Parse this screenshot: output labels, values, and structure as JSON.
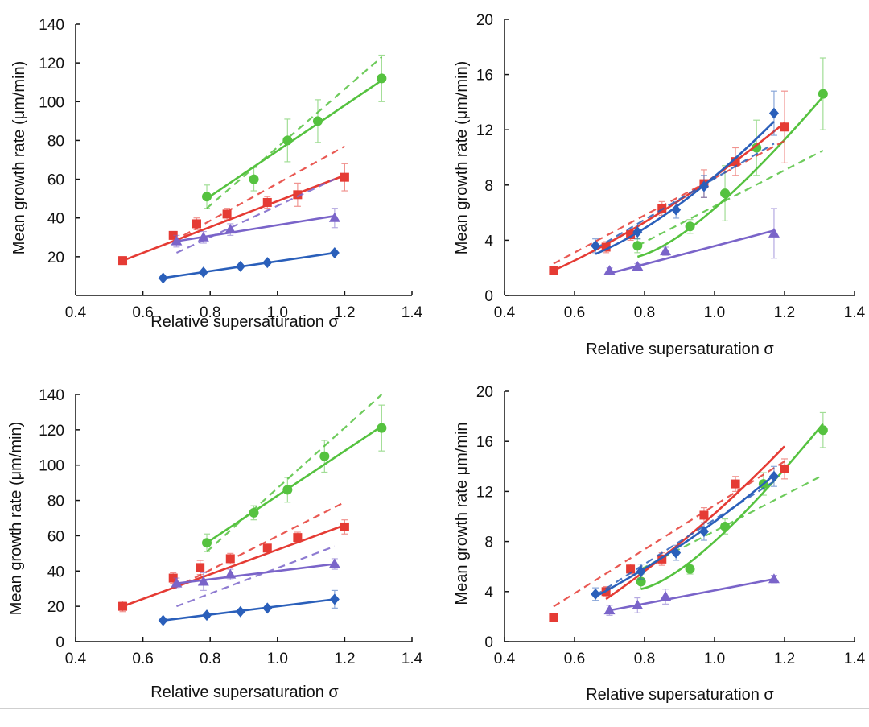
{
  "figure": {
    "colors": {
      "green": "#55c23f",
      "red": "#e53b34",
      "purple": "#7a64c9",
      "blue": "#2a5fba"
    }
  },
  "chart_data": [
    {
      "type": "scatter",
      "title": "",
      "xlabel": "Relative supersaturation σ",
      "ylabel": "Mean growth rate (μm/min)",
      "xlim": [
        0.4,
        1.4
      ],
      "ylim": [
        0,
        140
      ],
      "xticks": [
        "0.4",
        "0.6",
        "0.8",
        "1.0",
        "1.2",
        "1.4"
      ],
      "yticks": [
        "20",
        "40",
        "60",
        "80",
        "100",
        "120",
        "140"
      ],
      "series": [
        {
          "name": "green",
          "color": "#55c23f",
          "marker": "circle",
          "x": [
            0.79,
            0.93,
            1.03,
            1.12,
            1.31
          ],
          "y": [
            51,
            60,
            80,
            90,
            112
          ],
          "err": [
            6,
            6,
            11,
            11,
            12
          ],
          "fit": [
            [
              0.79,
              50
            ],
            [
              1.31,
              111
            ]
          ],
          "dashed": [
            [
              0.79,
              45
            ],
            [
              1.31,
              123
            ]
          ]
        },
        {
          "name": "red",
          "color": "#e53b34",
          "marker": "square",
          "x": [
            0.54,
            0.69,
            0.76,
            0.85,
            0.97,
            1.06,
            1.2
          ],
          "y": [
            18,
            31,
            37,
            42,
            48,
            52,
            61
          ],
          "err": [
            2,
            2,
            3,
            3,
            3,
            6,
            7
          ],
          "fit": [
            [
              0.54,
              18
            ],
            [
              1.2,
              62
            ]
          ],
          "dashed": [
            [
              0.69,
              28
            ],
            [
              1.2,
              77
            ]
          ]
        },
        {
          "name": "purple",
          "color": "#7a64c9",
          "marker": "triangle",
          "x": [
            0.7,
            0.78,
            0.86,
            1.17
          ],
          "y": [
            28,
            30,
            34,
            40
          ],
          "err": [
            3,
            3,
            3,
            5
          ],
          "fit": [
            [
              0.7,
              28
            ],
            [
              1.17,
              41
            ]
          ],
          "dashed": [
            [
              0.7,
              22
            ],
            [
              1.17,
              60
            ]
          ]
        },
        {
          "name": "blue",
          "color": "#2a5fba",
          "marker": "diamond",
          "x": [
            0.66,
            0.78,
            0.89,
            0.97,
            1.17
          ],
          "y": [
            9,
            12,
            15,
            17,
            22
          ],
          "err": [
            0,
            0,
            0,
            0,
            0
          ],
          "fit": [
            [
              0.66,
              9
            ],
            [
              1.17,
              22
            ]
          ],
          "dashed": []
        }
      ]
    },
    {
      "type": "scatter",
      "title": "",
      "xlabel": "Relative supersaturation σ",
      "ylabel": "Mean growth rate (μm/min)",
      "xlim": [
        0.4,
        1.4
      ],
      "ylim": [
        0,
        20
      ],
      "xticks": [
        "0.4",
        "0.6",
        "0.8",
        "1.0",
        "1.2",
        "1.4"
      ],
      "yticks": [
        "0",
        "4",
        "8",
        "12",
        "16",
        "20"
      ],
      "series": [
        {
          "name": "green",
          "color": "#55c23f",
          "marker": "circle",
          "x": [
            0.78,
            0.93,
            1.03,
            1.12,
            1.31
          ],
          "y": [
            3.6,
            5.0,
            7.4,
            10.7,
            14.6
          ],
          "err": [
            0.5,
            0.5,
            2,
            2,
            2.6
          ],
          "fit": [
            [
              0.78,
              2.8
            ],
            [
              1.0,
              6.3
            ],
            [
              1.31,
              14.4
            ]
          ],
          "dashed": [
            [
              0.78,
              3.6
            ],
            [
              1.31,
              10.5
            ]
          ]
        },
        {
          "name": "red",
          "color": "#e53b34",
          "marker": "square",
          "x": [
            0.54,
            0.69,
            0.76,
            0.85,
            0.97,
            1.06,
            1.2
          ],
          "y": [
            1.8,
            3.5,
            4.4,
            6.3,
            8.1,
            9.7,
            12.2
          ],
          "err": [
            0.3,
            0.4,
            0.4,
            0.5,
            1,
            1,
            2.6
          ],
          "fit": [
            [
              0.54,
              1.8
            ],
            [
              0.87,
              6.4
            ],
            [
              1.2,
              12.5
            ]
          ],
          "dashed": [
            [
              0.54,
              2.3
            ],
            [
              1.2,
              11.2
            ]
          ]
        },
        {
          "name": "purple",
          "color": "#7a64c9",
          "marker": "triangle",
          "x": [
            0.7,
            0.78,
            0.86,
            1.17
          ],
          "y": [
            1.8,
            2.1,
            3.2,
            4.5
          ],
          "err": [
            0.2,
            0.2,
            0.3,
            1.8
          ],
          "fit": [
            [
              0.7,
              1.6
            ],
            [
              1.17,
              4.7
            ]
          ],
          "dashed": []
        },
        {
          "name": "blue",
          "color": "#2a5fba",
          "marker": "diamond",
          "x": [
            0.66,
            0.78,
            0.89,
            0.97,
            1.17
          ],
          "y": [
            3.6,
            4.6,
            6.2,
            7.9,
            13.2
          ],
          "err": [
            0.5,
            0.5,
            0.6,
            0.8,
            1.6
          ],
          "fit": [
            [
              0.66,
              3.0
            ],
            [
              0.9,
              6.6
            ],
            [
              1.17,
              12.6
            ]
          ],
          "dashed": [
            [
              0.66,
              3.4
            ],
            [
              1.17,
              11.0
            ]
          ]
        }
      ]
    },
    {
      "type": "scatter",
      "title": "",
      "xlabel": "Relative supersaturation σ",
      "ylabel": "Mean growth rate (μm/min)",
      "xlim": [
        0.4,
        1.4
      ],
      "ylim": [
        0,
        140
      ],
      "xticks": [
        "0.4",
        "0.6",
        "0.8",
        "1.0",
        "1.2",
        "1.4"
      ],
      "yticks": [
        "0",
        "20",
        "40",
        "60",
        "80",
        "100",
        "120",
        "140"
      ],
      "series": [
        {
          "name": "green",
          "color": "#55c23f",
          "marker": "circle",
          "x": [
            0.79,
            0.93,
            1.03,
            1.14,
            1.31
          ],
          "y": [
            56,
            73,
            86,
            105,
            121
          ],
          "err": [
            5,
            4,
            7,
            9,
            13
          ],
          "fit": [
            [
              0.79,
              56
            ],
            [
              1.31,
              122
            ]
          ],
          "dashed": [
            [
              0.79,
              51
            ],
            [
              1.31,
              140
            ]
          ]
        },
        {
          "name": "red",
          "color": "#e53b34",
          "marker": "square",
          "x": [
            0.54,
            0.69,
            0.77,
            0.86,
            0.97,
            1.06,
            1.2
          ],
          "y": [
            20,
            36,
            42,
            47,
            53,
            59,
            65
          ],
          "err": [
            3,
            3,
            4,
            3,
            2,
            3,
            4
          ],
          "fit": [
            [
              0.54,
              20
            ],
            [
              1.2,
              66
            ]
          ],
          "dashed": [
            [
              0.69,
              30
            ],
            [
              1.2,
              79
            ]
          ]
        },
        {
          "name": "purple",
          "color": "#7a64c9",
          "marker": "triangle",
          "x": [
            0.7,
            0.78,
            0.86,
            1.17
          ],
          "y": [
            33,
            34,
            38,
            44
          ],
          "err": [
            3,
            5,
            3,
            3
          ],
          "fit": [
            [
              0.7,
              33
            ],
            [
              1.17,
              44
            ]
          ],
          "dashed": [
            [
              0.7,
              20
            ],
            [
              1.17,
              54
            ]
          ]
        },
        {
          "name": "blue",
          "color": "#2a5fba",
          "marker": "diamond",
          "x": [
            0.66,
            0.79,
            0.89,
            0.97,
            1.17
          ],
          "y": [
            12,
            15,
            17,
            19,
            24
          ],
          "err": [
            0,
            1,
            1,
            1,
            5
          ],
          "fit": [
            [
              0.66,
              12
            ],
            [
              1.17,
              24
            ]
          ],
          "dashed": []
        }
      ]
    },
    {
      "type": "scatter",
      "title": "",
      "xlabel": "Relative supersaturation σ",
      "ylabel": "Mean growth rate μm/min",
      "xlim": [
        0.4,
        1.4
      ],
      "ylim": [
        0,
        20
      ],
      "xticks": [
        "0.4",
        "0.6",
        "0.8",
        "1.0",
        "1.2",
        "1.4"
      ],
      "yticks": [
        "0",
        "4",
        "8",
        "12",
        "16",
        "20"
      ],
      "series": [
        {
          "name": "green",
          "color": "#55c23f",
          "marker": "circle",
          "x": [
            0.79,
            0.93,
            1.03,
            1.14,
            1.31
          ],
          "y": [
            4.8,
            5.8,
            9.2,
            12.6,
            16.9
          ],
          "err": [
            0.6,
            0.4,
            0.6,
            0.9,
            1.4
          ],
          "fit": [
            [
              0.79,
              4.2
            ],
            [
              1.0,
              8.0
            ],
            [
              1.31,
              17.4
            ]
          ],
          "dashed": [
            [
              0.79,
              5.8
            ],
            [
              1.31,
              13.3
            ]
          ]
        },
        {
          "name": "red",
          "color": "#e53b34",
          "marker": "square",
          "x": [
            0.54,
            0.69,
            0.76,
            0.85,
            0.97,
            1.06,
            1.2
          ],
          "y": [
            1.9,
            4.0,
            5.8,
            6.6,
            10.1,
            12.6,
            13.8
          ],
          "err": [
            0.2,
            0.4,
            0.4,
            0.5,
            0.6,
            0.6,
            0.8
          ],
          "fit": [
            [
              0.69,
              3.4
            ],
            [
              0.95,
              9.0
            ],
            [
              1.2,
              15.6
            ]
          ],
          "dashed": [
            [
              0.54,
              2.8
            ],
            [
              1.2,
              14.4
            ]
          ]
        },
        {
          "name": "purple",
          "color": "#7a64c9",
          "marker": "triangle",
          "x": [
            0.7,
            0.78,
            0.86,
            1.17
          ],
          "y": [
            2.5,
            2.9,
            3.6,
            5.0
          ],
          "err": [
            0.4,
            0.6,
            0.6,
            0.3
          ],
          "fit": [
            [
              0.7,
              2.5
            ],
            [
              1.17,
              5.0
            ]
          ],
          "dashed": []
        },
        {
          "name": "blue",
          "color": "#2a5fba",
          "marker": "diamond",
          "x": [
            0.66,
            0.79,
            0.89,
            0.97,
            1.17
          ],
          "y": [
            3.8,
            5.6,
            7.1,
            8.8,
            13.2
          ],
          "err": [
            0.5,
            0.6,
            0.6,
            0.7,
            0.8
          ],
          "fit": [
            [
              0.66,
              3.6
            ],
            [
              0.92,
              8.0
            ],
            [
              1.17,
              13.3
            ]
          ],
          "dashed": [
            [
              0.66,
              3.7
            ],
            [
              1.17,
              12.8
            ]
          ]
        }
      ]
    }
  ]
}
